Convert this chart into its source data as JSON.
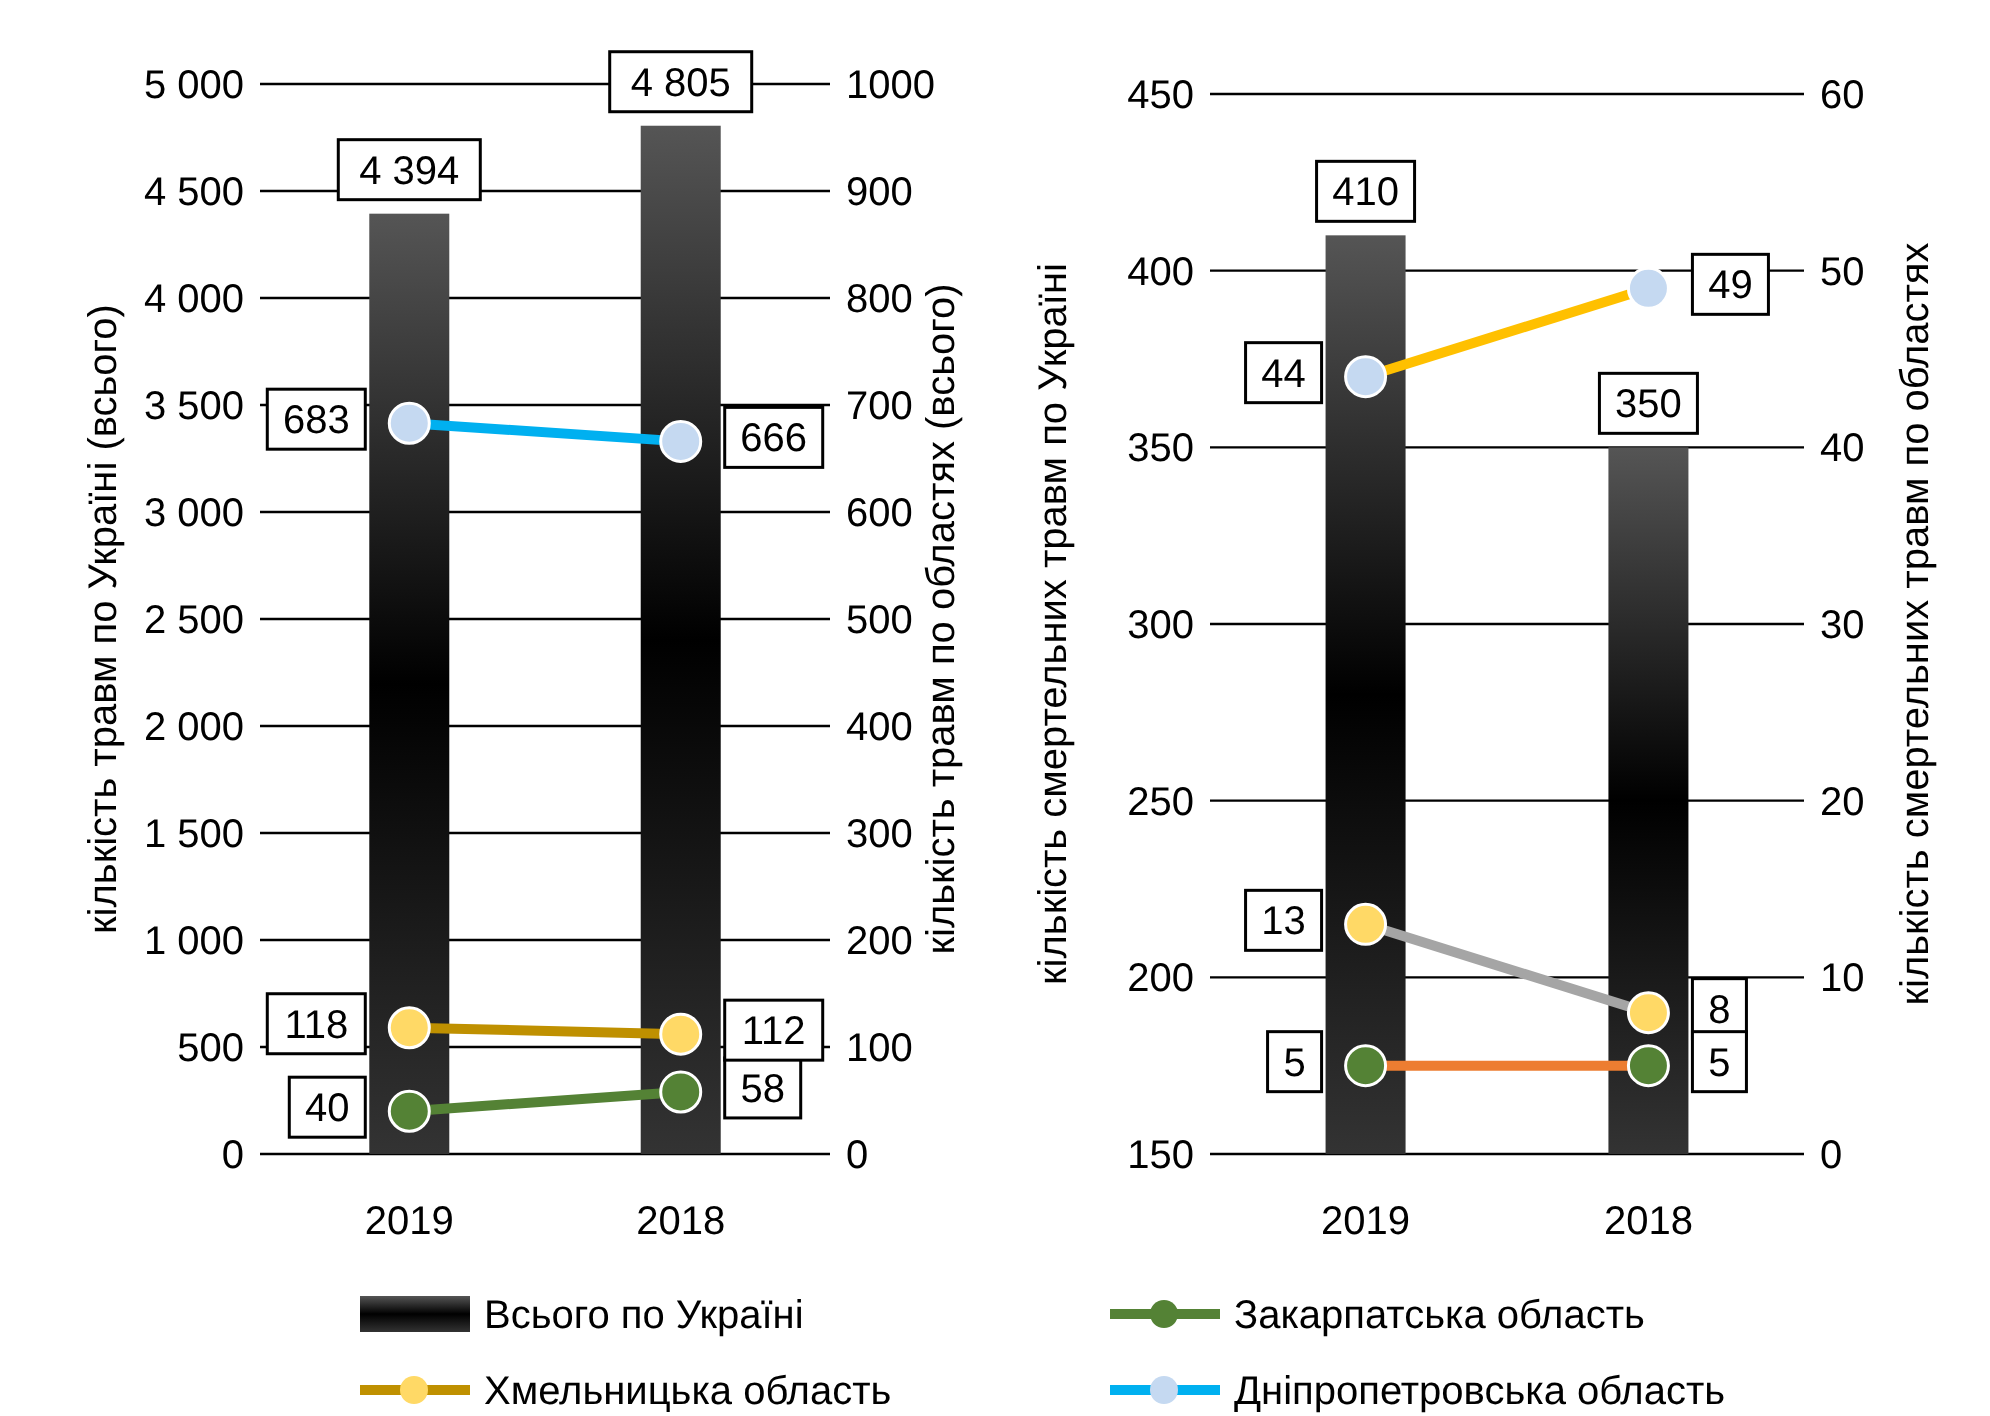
{
  "chart_data": [
    {
      "type": "bar",
      "categories": [
        "2019",
        "2018"
      ],
      "ylabel": "кількість травм по Україні (всього)",
      "y2label": "кількість травм по областях (всього)",
      "ylim": [
        0,
        5000
      ],
      "yticks": [
        0,
        500,
        {
          "value": 1000,
          "label": "1 000"
        },
        {
          "value": 1500,
          "label": "1 500"
        },
        {
          "value": 2000,
          "label": "2 000"
        },
        {
          "value": 2500,
          "label": "2 500"
        },
        {
          "value": 3000,
          "label": "3 000"
        },
        {
          "value": 3500,
          "label": "3 500"
        },
        {
          "value": 4000,
          "label": "4 000"
        },
        {
          "value": 4500,
          "label": "4 500"
        },
        {
          "value": 5000,
          "label": "5 000"
        }
      ],
      "y2lim": [
        0,
        1000
      ],
      "y2ticks": [
        0,
        100,
        200,
        300,
        400,
        500,
        600,
        700,
        800,
        900,
        1000
      ],
      "grid": "y",
      "data_labels": true,
      "legend": "bottom",
      "marker": "circle",
      "series": [
        {
          "name": "Всього по Україні",
          "color": "#000000",
          "values": [
            4394,
            4805
          ],
          "value_labels": [
            "4 394",
            "4 805"
          ]
        },
        {
          "name": "Закарпатська область",
          "type": "line",
          "axis": "y2",
          "color": "#548235",
          "colors": [
            "#548235",
            "#548235"
          ],
          "values": [
            40,
            58
          ]
        },
        {
          "name": "Хмельницька область",
          "type": "line",
          "axis": "y2",
          "color": "#bf9000",
          "colors": [
            "#ffd966",
            "#ffd966"
          ],
          "values": [
            118,
            112
          ]
        },
        {
          "name": "Дніпропетровська область",
          "type": "line",
          "axis": "y2",
          "color": "#00b0f0",
          "colors": [
            "#c5d9f1",
            "#c5d9f1"
          ],
          "values": [
            683,
            666
          ]
        }
      ]
    },
    {
      "type": "bar",
      "categories": [
        "2019",
        "2018"
      ],
      "ylabel": "кількість смертельних травм по Україні",
      "y2label": "кількість смертельних травм по областях",
      "ylim": [
        150,
        450
      ],
      "yticks": [
        150,
        200,
        250,
        300,
        350,
        400,
        450
      ],
      "y2lim": [
        0,
        60
      ],
      "y2ticks": [
        0,
        10,
        20,
        30,
        40,
        50,
        60
      ],
      "grid": "y",
      "data_labels": true,
      "marker": "circle",
      "series": [
        {
          "color": "#000000",
          "values": [
            410,
            350
          ]
        },
        {
          "type": "line",
          "axis": "y2",
          "color": "#ffc000",
          "colors": [
            "#c5d9f1",
            "#c5d9f1"
          ],
          "values": [
            44,
            49
          ]
        },
        {
          "type": "line",
          "axis": "y2",
          "color": "#a5a5a5",
          "colors": [
            "#ffd966",
            "#ffd966"
          ],
          "values": [
            13,
            8
          ]
        },
        {
          "type": "line",
          "axis": "y2",
          "color": "#ed7d31",
          "colors": [
            "#548235",
            "#548235"
          ],
          "values": [
            5,
            5
          ]
        }
      ]
    }
  ]
}
